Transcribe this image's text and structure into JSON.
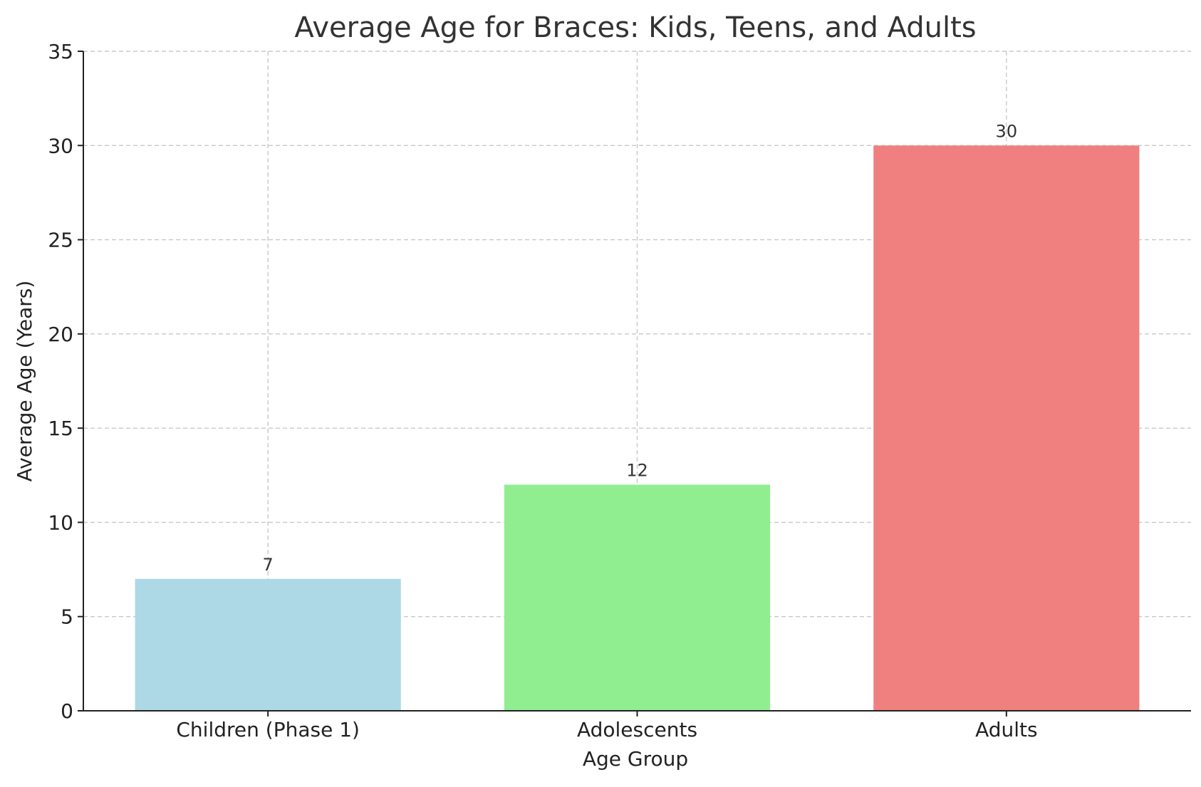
{
  "chart_data": {
    "type": "bar",
    "title": "Average Age for Braces: Kids, Teens, and Adults",
    "xlabel": "Age Group",
    "ylabel": "Average Age (Years)",
    "categories": [
      "Children (Phase 1)",
      "Adolescents",
      "Adults"
    ],
    "values": [
      7,
      12,
      30
    ],
    "data_labels": [
      "7",
      "12",
      "30"
    ],
    "colors": [
      "#add8e6",
      "#90ee90",
      "#f08080"
    ],
    "ylim": [
      0,
      35
    ],
    "yticks": [
      0,
      5,
      10,
      15,
      20,
      25,
      30,
      35
    ],
    "ytick_labels": [
      "0",
      "5",
      "10",
      "15",
      "20",
      "25",
      "30",
      "35"
    ],
    "grid": true,
    "grid_style": "dashed"
  }
}
